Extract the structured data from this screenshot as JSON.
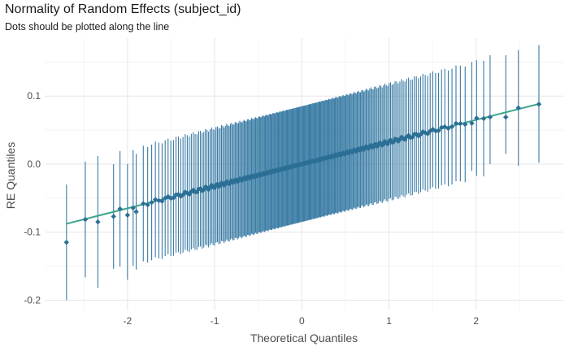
{
  "chart_data": {
    "type": "scatter",
    "title": "Normality of Random Effects (subject_id)",
    "subtitle": "Dots should be plotted along the line",
    "xlabel": "Theoretical Quantiles",
    "ylabel": "RE Quantiles",
    "xlim": [
      -2.95,
      3.0
    ],
    "ylim": [
      -0.215,
      0.185
    ],
    "x_ticks": [
      -2,
      -1,
      0,
      1,
      2
    ],
    "x_tick_labels": [
      "-2",
      "-1",
      "0",
      "1",
      "2"
    ],
    "y_ticks": [
      -0.2,
      -0.1,
      0.0,
      0.1
    ],
    "y_tick_labels": [
      "-0.2",
      "-0.1",
      "0.0",
      "0.1"
    ],
    "grid": true,
    "n_points": 250,
    "reference_line": {
      "intercept": 0.0,
      "slope": 0.0325,
      "x_range": [
        -2.7,
        2.72
      ],
      "color": "#3aa58a"
    },
    "points_color": "#2c6f96",
    "ci_half_width": 0.085,
    "ci_color": "#3a7ca5",
    "notable_points": [
      {
        "x": -2.7,
        "y": -0.115,
        "ci": [
          -0.2,
          -0.03
        ]
      },
      {
        "x": -2.34,
        "y": -0.085,
        "ci": [
          -0.182,
          0.012
        ]
      },
      {
        "x": -2.16,
        "y": -0.077,
        "ci": [
          -0.154,
          0.0
        ]
      },
      {
        "x": -2.0,
        "y": -0.075,
        "ci": [
          -0.17,
          0.0
        ]
      },
      {
        "x": -1.9,
        "y": -0.07,
        "ci": [
          -0.155,
          0.015
        ]
      },
      {
        "x": 1.95,
        "y": 0.06,
        "ci": [
          -0.01,
          0.15
        ]
      },
      {
        "x": 2.16,
        "y": 0.069,
        "ci": [
          0.0,
          0.16
        ]
      },
      {
        "x": 2.34,
        "y": 0.069,
        "ci": [
          0.015,
          0.16
        ]
      },
      {
        "x": 2.72,
        "y": 0.088,
        "ci": [
          0.002,
          0.175
        ]
      }
    ]
  }
}
